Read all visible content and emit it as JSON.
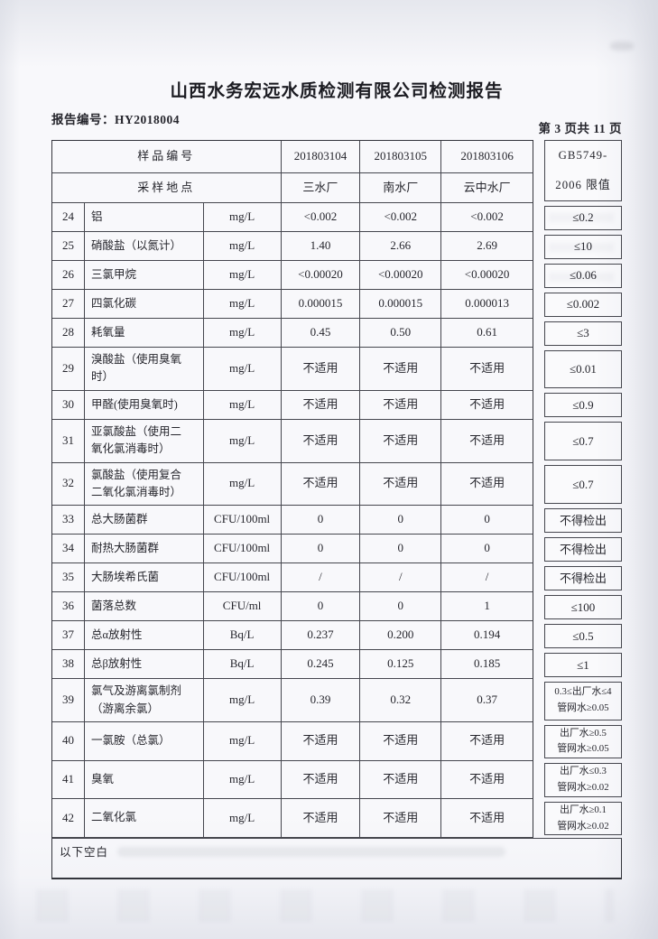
{
  "page": {
    "title": "山西水务宏远水质检测有限公司检测报告",
    "report_no": "报告编号：HY2018004",
    "page_indicator": "第 3 页共 11 页",
    "footer_note": "以下空白"
  },
  "table": {
    "header": {
      "sample_id_label": "样品编号",
      "location_label": "采样地点",
      "sample_ids": [
        "201803104",
        "201803105",
        "201803106"
      ],
      "locations": [
        "三水厂",
        "南水厂",
        "云中水厂"
      ],
      "limit_header": "GB5749-\n2006 限值"
    },
    "rows": [
      {
        "num": "24",
        "name": "铝",
        "unit": "mg/L",
        "values": [
          "<0.002",
          "<0.002",
          "<0.002"
        ],
        "limit": "≤0.2"
      },
      {
        "num": "25",
        "name": "硝酸盐（以氮计）",
        "unit": "mg/L",
        "values": [
          "1.40",
          "2.66",
          "2.69"
        ],
        "limit": "≤10"
      },
      {
        "num": "26",
        "name": "三氯甲烷",
        "unit": "mg/L",
        "values": [
          "<0.00020",
          "<0.00020",
          "<0.00020"
        ],
        "limit": "≤0.06"
      },
      {
        "num": "27",
        "name": "四氯化碳",
        "unit": "mg/L",
        "values": [
          "0.000015",
          "0.000015",
          "0.000013"
        ],
        "limit": "≤0.002"
      },
      {
        "num": "28",
        "name": "耗氧量",
        "unit": "mg/L",
        "values": [
          "0.45",
          "0.50",
          "0.61"
        ],
        "limit": "≤3"
      },
      {
        "num": "29",
        "name": "溴酸盐（使用臭氧\n时）",
        "unit": "mg/L",
        "values": [
          "不适用",
          "不适用",
          "不适用"
        ],
        "limit": "≤0.01"
      },
      {
        "num": "30",
        "name": "甲醛(使用臭氧时)",
        "unit": "mg/L",
        "values": [
          "不适用",
          "不适用",
          "不适用"
        ],
        "limit": "≤0.9"
      },
      {
        "num": "31",
        "name": "亚氯酸盐（使用二\n氧化氯消毒时）",
        "unit": "mg/L",
        "values": [
          "不适用",
          "不适用",
          "不适用"
        ],
        "limit": "≤0.7"
      },
      {
        "num": "32",
        "name": "氯酸盐（使用复合\n二氧化氯消毒时）",
        "unit": "mg/L",
        "values": [
          "不适用",
          "不适用",
          "不适用"
        ],
        "limit": "≤0.7"
      },
      {
        "num": "33",
        "name": "总大肠菌群",
        "unit": "CFU/100ml",
        "values": [
          "0",
          "0",
          "0"
        ],
        "limit": "不得检出"
      },
      {
        "num": "34",
        "name": "耐热大肠菌群",
        "unit": "CFU/100ml",
        "values": [
          "0",
          "0",
          "0"
        ],
        "limit": "不得检出"
      },
      {
        "num": "35",
        "name": "大肠埃希氏菌",
        "unit": "CFU/100ml",
        "values": [
          "/",
          "/",
          "/"
        ],
        "limit": "不得检出"
      },
      {
        "num": "36",
        "name": "菌落总数",
        "unit": "CFU/ml",
        "values": [
          "0",
          "0",
          "1"
        ],
        "limit": "≤100"
      },
      {
        "num": "37",
        "name": "总α放射性",
        "unit": "Bq/L",
        "values": [
          "0.237",
          "0.200",
          "0.194"
        ],
        "limit": "≤0.5"
      },
      {
        "num": "38",
        "name": "总β放射性",
        "unit": "Bq/L",
        "values": [
          "0.245",
          "0.125",
          "0.185"
        ],
        "limit": "≤1"
      },
      {
        "num": "39",
        "name": "氯气及游离氯制剂\n（游离余氯）",
        "unit": "mg/L",
        "values": [
          "0.39",
          "0.32",
          "0.37"
        ],
        "limit": "0.3≤出厂水≤4\n管网水≥0.05"
      },
      {
        "num": "40",
        "name": "一氯胺（总氯）",
        "unit": "mg/L",
        "values": [
          "不适用",
          "不适用",
          "不适用"
        ],
        "limit": "出厂水≥0.5\n管网水≥0.05"
      },
      {
        "num": "41",
        "name": "臭氧",
        "unit": "mg/L",
        "values": [
          "不适用",
          "不适用",
          "不适用"
        ],
        "limit": "出厂水≤0.3\n管网水≥0.02"
      },
      {
        "num": "42",
        "name": "二氧化氯",
        "unit": "mg/L",
        "values": [
          "不适用",
          "不适用",
          "不适用"
        ],
        "limit": "出厂水≥0.1\n管网水≥0.02"
      }
    ]
  }
}
